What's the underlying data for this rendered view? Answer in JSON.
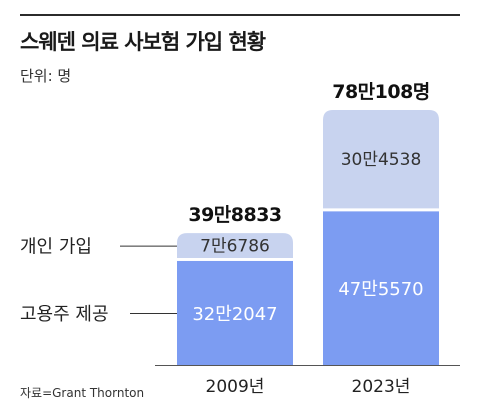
{
  "title": "스웨덴 의료 사보험 가입 현황",
  "unit_label": "단위: 명",
  "source": "자료=Grant Thornton",
  "colors": {
    "bottom": "#7c9cf2",
    "top": "#c8d3ef",
    "total_text": "#111111",
    "inner_text": "#ffffff",
    "top_text": "#333333",
    "axis": "#555555"
  },
  "chart_data": {
    "type": "bar",
    "stacked": true,
    "categories": [
      "2009년",
      "2023년"
    ],
    "series": [
      {
        "name": "고용주 제공",
        "values": [
          322047,
          475570
        ],
        "labels": [
          "32만2047",
          "47만5570"
        ]
      },
      {
        "name": "개인 가입",
        "values": [
          76786,
          304538
        ],
        "labels": [
          "7만6786",
          "30만4538"
        ]
      }
    ],
    "totals": [
      398833,
      780108
    ],
    "total_labels": [
      "39만8833",
      "78만108명"
    ],
    "legend_placement": "left",
    "grid": false
  }
}
